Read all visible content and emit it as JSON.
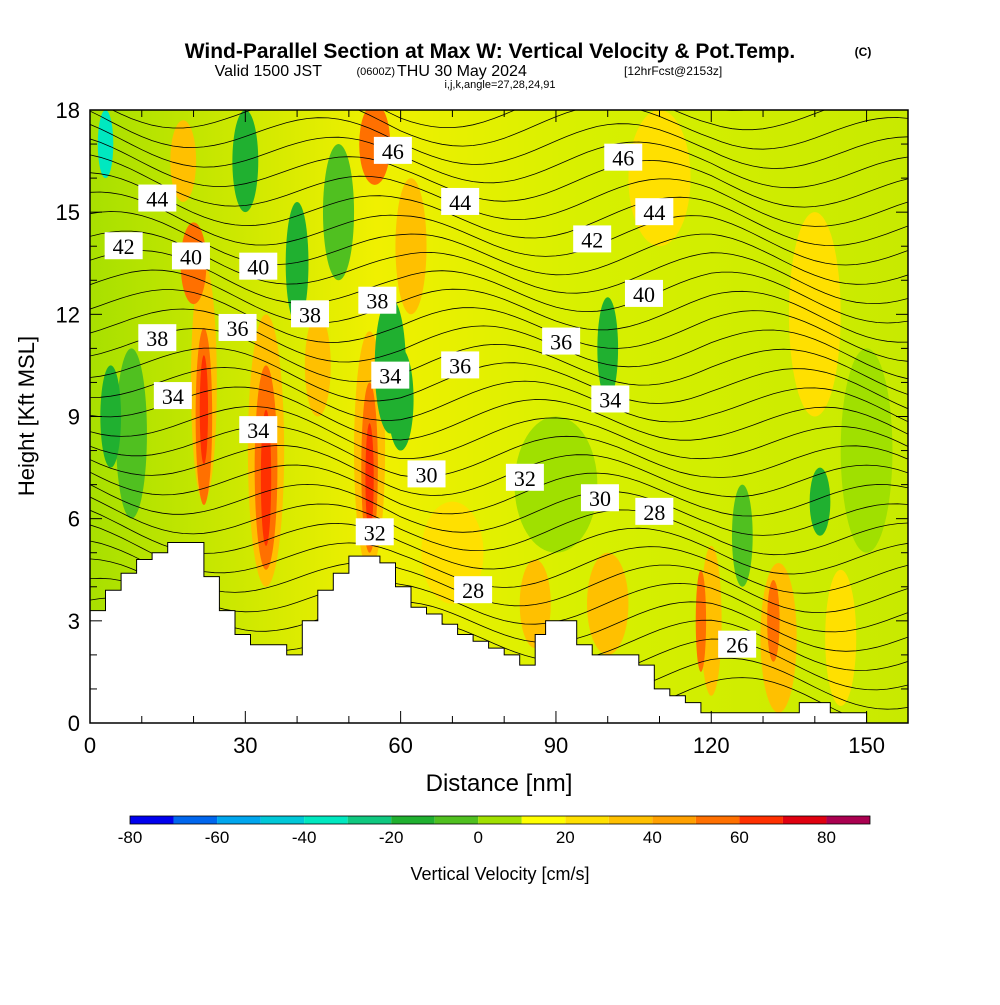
{
  "header": {
    "title": "Wind-Parallel Section at Max W: Vertical Velocity & Pot.Temp.",
    "copyright": "(C)",
    "valid_prefix": "Valid 1500 JST",
    "valid_utc": "(0600Z)",
    "valid_date": "THU 30 May 2024",
    "forecast": "[12hrFcst@2153z]",
    "indices": "i,j,k,angle=27,28,24,91"
  },
  "chart_data": {
    "type": "heatmap",
    "title": "Wind-Parallel Section at Max W: Vertical Velocity & Pot.Temp.",
    "xlabel": "Distance [nm]",
    "ylabel": "Height [Kft MSL]",
    "xlim": [
      0,
      158
    ],
    "ylim": [
      0,
      18
    ],
    "x_ticks": [
      0,
      30,
      60,
      90,
      120,
      150
    ],
    "y_ticks": [
      0,
      3,
      6,
      9,
      12,
      15,
      18
    ],
    "fill_field": "Vertical Velocity",
    "contour_field": "Potential Temperature",
    "colorbar": {
      "label": "Vertical Velocity [cm/s]",
      "ticks": [
        -80,
        -60,
        -40,
        -20,
        0,
        20,
        40,
        60,
        80
      ],
      "levels": [
        -80,
        -70,
        -60,
        -50,
        -40,
        -30,
        -20,
        -10,
        0,
        10,
        20,
        30,
        40,
        50,
        60,
        70,
        80,
        90
      ],
      "colors": [
        "#0000ee",
        "#0066ee",
        "#00a6ee",
        "#00c8d8",
        "#00e8c0",
        "#10c880",
        "#20b030",
        "#50c020",
        "#a0e000",
        "#ffff00",
        "#ffe000",
        "#ffc000",
        "#ffa000",
        "#ff7000",
        "#ff3000",
        "#e00010",
        "#aa0050",
        "#7000a0"
      ]
    },
    "contour_labels": [
      {
        "text": "44",
        "x": 13,
        "y": 15.4
      },
      {
        "text": "42",
        "x": 6.5,
        "y": 14.0
      },
      {
        "text": "40",
        "x": 19.5,
        "y": 13.7
      },
      {
        "text": "40",
        "x": 32.5,
        "y": 13.4
      },
      {
        "text": "38",
        "x": 13,
        "y": 11.3
      },
      {
        "text": "36",
        "x": 28.5,
        "y": 11.6
      },
      {
        "text": "38",
        "x": 42.5,
        "y": 12.0
      },
      {
        "text": "46",
        "x": 58.5,
        "y": 16.8
      },
      {
        "text": "44",
        "x": 71.5,
        "y": 15.3
      },
      {
        "text": "38",
        "x": 55.5,
        "y": 12.4
      },
      {
        "text": "34",
        "x": 58,
        "y": 10.2
      },
      {
        "text": "36",
        "x": 71.5,
        "y": 10.5
      },
      {
        "text": "46",
        "x": 103,
        "y": 16.6
      },
      {
        "text": "44",
        "x": 109,
        "y": 15.0
      },
      {
        "text": "42",
        "x": 97,
        "y": 14.2
      },
      {
        "text": "40",
        "x": 107,
        "y": 12.6
      },
      {
        "text": "36",
        "x": 91,
        "y": 11.2
      },
      {
        "text": "34",
        "x": 100.5,
        "y": 9.5
      },
      {
        "text": "34",
        "x": 16,
        "y": 9.6
      },
      {
        "text": "34",
        "x": 32.5,
        "y": 8.6
      },
      {
        "text": "30",
        "x": 65,
        "y": 7.3
      },
      {
        "text": "32",
        "x": 84,
        "y": 7.2
      },
      {
        "text": "30",
        "x": 98.5,
        "y": 6.6
      },
      {
        "text": "28",
        "x": 109,
        "y": 6.2
      },
      {
        "text": "32",
        "x": 55,
        "y": 5.6
      },
      {
        "text": "28",
        "x": 74,
        "y": 3.9
      },
      {
        "text": "26",
        "x": 125,
        "y": 2.3
      }
    ],
    "terrain_steps": [
      [
        0,
        3.3
      ],
      [
        3,
        3.9
      ],
      [
        6,
        4.4
      ],
      [
        9,
        4.8
      ],
      [
        12,
        5.0
      ],
      [
        15,
        5.3
      ],
      [
        19,
        5.3
      ],
      [
        22,
        4.3
      ],
      [
        25,
        3.3
      ],
      [
        28,
        2.6
      ],
      [
        31,
        2.3
      ],
      [
        35,
        2.3
      ],
      [
        38,
        2.0
      ],
      [
        41,
        3.0
      ],
      [
        44,
        3.9
      ],
      [
        47,
        4.4
      ],
      [
        50,
        4.9
      ],
      [
        56,
        4.7
      ],
      [
        59,
        4.0
      ],
      [
        62,
        3.4
      ],
      [
        65,
        3.2
      ],
      [
        68,
        2.9
      ],
      [
        71,
        2.6
      ],
      [
        74,
        2.4
      ],
      [
        77,
        2.2
      ],
      [
        80,
        2.0
      ],
      [
        83,
        1.7
      ],
      [
        86,
        2.6
      ],
      [
        88,
        3.0
      ],
      [
        94,
        2.3
      ],
      [
        97,
        2.0
      ],
      [
        106,
        1.7
      ],
      [
        109,
        1.0
      ],
      [
        112,
        0.8
      ],
      [
        115,
        0.6
      ],
      [
        118,
        0.3
      ],
      [
        137,
        0.6
      ],
      [
        143,
        0.3
      ],
      [
        150,
        0
      ]
    ]
  }
}
